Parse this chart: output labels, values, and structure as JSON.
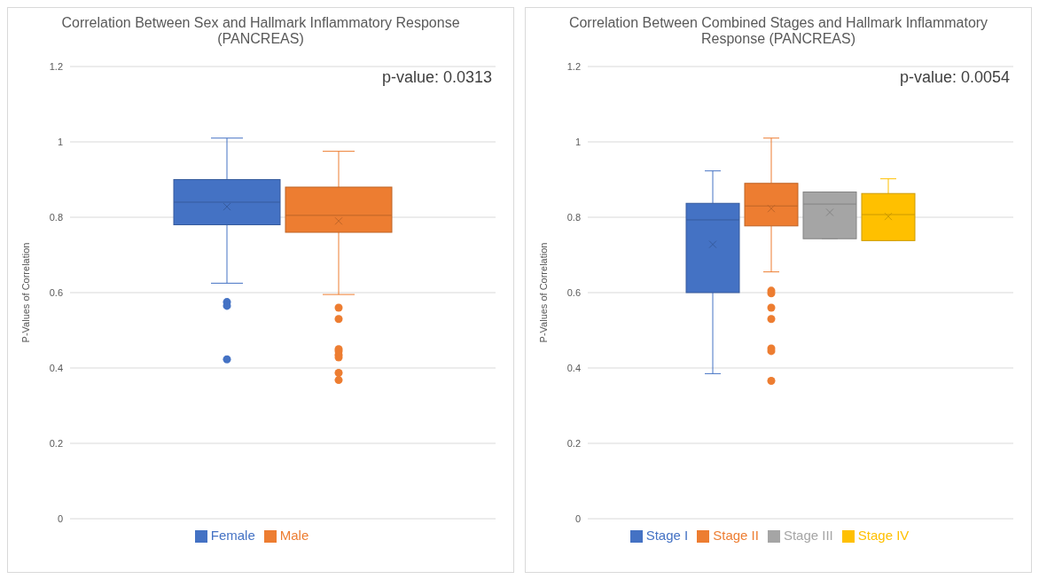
{
  "chart_data": [
    {
      "type": "box",
      "title": "Correlation Between Sex and Hallmark Inflammatory Response (PANCREAS)",
      "ylabel": "P-Values of Correlation",
      "categories": [
        null
      ],
      "ylim": [
        0,
        1.2
      ],
      "yticks": [
        0,
        0.2,
        0.4,
        0.6,
        0.8,
        1,
        1.2
      ],
      "grid": "y",
      "legend": "bottom",
      "annotations": [
        "p-value: 0.0313"
      ],
      "series": [
        {
          "name": "Female",
          "color": "#4472c4",
          "boxes": [
            {
              "low": 0.625,
              "q1": 0.78,
              "median": 0.84,
              "q3": 0.9,
              "high": 1.01,
              "mean": 0.828,
              "outliers": [
                0.575,
                0.565,
                0.423
              ]
            }
          ]
        },
        {
          "name": "Male",
          "color": "#ed7d31",
          "boxes": [
            {
              "low": 0.595,
              "q1": 0.76,
              "median": 0.805,
              "q3": 0.88,
              "high": 0.975,
              "mean": 0.79,
              "outliers": [
                0.56,
                0.53,
                0.45,
                0.445,
                0.435,
                0.428,
                0.387,
                0.368
              ]
            }
          ]
        }
      ]
    },
    {
      "type": "box",
      "title": "Correlation Between Combined Stages and Hallmark Inflammatory Response (PANCREAS)",
      "ylabel": "P-Values of Correlation",
      "categories": [
        null
      ],
      "ylim": [
        0,
        1.2
      ],
      "yticks": [
        0,
        0.2,
        0.4,
        0.6,
        0.8,
        1,
        1.2
      ],
      "grid": "y",
      "legend": "bottom",
      "annotations": [
        "p-value: 0.0054"
      ],
      "series": [
        {
          "name": "Stage I",
          "color": "#4472c4",
          "boxes": [
            {
              "low": 0.385,
              "q1": 0.6,
              "median": 0.793,
              "q3": 0.837,
              "high": 0.923,
              "mean": 0.728
            }
          ]
        },
        {
          "name": "Stage II",
          "color": "#ed7d31",
          "boxes": [
            {
              "low": 0.655,
              "q1": 0.777,
              "median": 0.83,
              "q3": 0.89,
              "high": 1.01,
              "mean": 0.823,
              "outliers": [
                0.605,
                0.598,
                0.56,
                0.53,
                0.452,
                0.445,
                0.366
              ]
            }
          ]
        },
        {
          "name": "Stage III",
          "color": "#a5a5a5",
          "boxes": [
            {
              "low": 0.743,
              "q1": 0.743,
              "median": 0.835,
              "q3": 0.867,
              "high": 0.867,
              "mean": 0.813
            }
          ]
        },
        {
          "name": "Stage IV",
          "color": "#ffc000",
          "boxes": [
            {
              "low": 0.738,
              "q1": 0.738,
              "median": 0.807,
              "q3": 0.863,
              "high": 0.902,
              "mean": 0.802
            }
          ]
        }
      ]
    }
  ]
}
